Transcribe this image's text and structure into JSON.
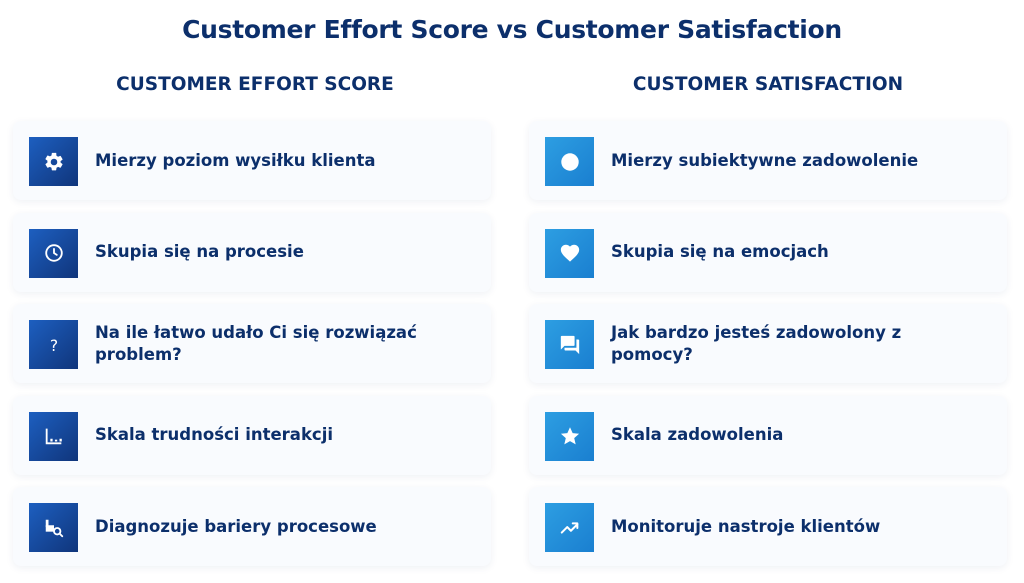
{
  "title": "Customer Effort Score vs Customer Satisfaction",
  "colors": {
    "heading": "#0c2f6b",
    "ces_icon_bg": "#10357b",
    "csat_icon_bg": "#1a7fd0",
    "card_bg": "#f9fbfe"
  },
  "ces": {
    "heading": "CUSTOMER EFFORT SCORE",
    "items": [
      {
        "label": "Mierzy poziom wysiłku klienta",
        "icon": "gear-icon"
      },
      {
        "label": "Skupia się na procesie",
        "icon": "clock-icon"
      },
      {
        "label": "Na ile łatwo udało Ci się rozwiązać problem?",
        "icon": "question-icon"
      },
      {
        "label": "Skala trudności interakcji",
        "icon": "bar-scale-icon"
      },
      {
        "label": "Diagnozuje bariery procesowe",
        "icon": "diagnose-search-icon"
      }
    ]
  },
  "csat": {
    "heading": "CUSTOMER SATISFACTION",
    "items": [
      {
        "label": "Mierzy subiektywne zadowolenie",
        "icon": "circle-icon"
      },
      {
        "label": "Skupia się na emocjach",
        "icon": "heart-icon"
      },
      {
        "label": "Jak bardzo jesteś zadowolony z pomocy?",
        "icon": "chat-icon"
      },
      {
        "label": "Skala zadowolenia",
        "icon": "star-icon"
      },
      {
        "label": "Monitoruje nastroje klientów",
        "icon": "trend-up-icon"
      }
    ]
  }
}
